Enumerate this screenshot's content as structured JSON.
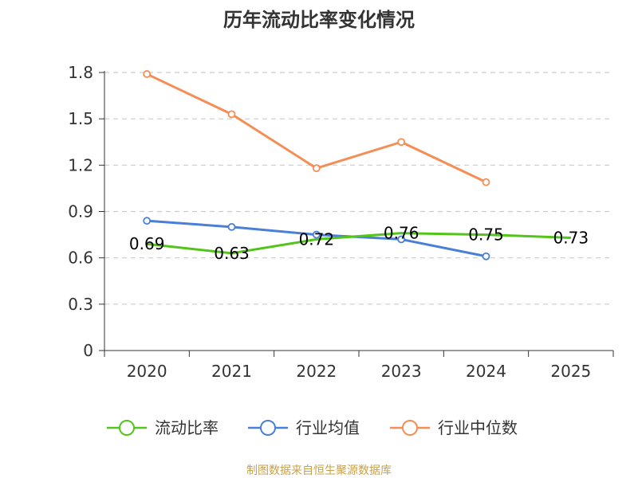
{
  "chart_data": {
    "type": "line",
    "title": "历年流动比率变化情况",
    "categories": [
      "2020",
      "2021",
      "2022",
      "2023",
      "2024",
      "2025"
    ],
    "y_ticks": [
      "0",
      "0.3",
      "0.6",
      "0.9",
      "1.2",
      "1.5",
      "1.8"
    ],
    "ylim": [
      0,
      1.8
    ],
    "grid": true,
    "legend_position": "bottom",
    "series": [
      {
        "name": "流动比率",
        "color": "#52c41a",
        "values": [
          0.69,
          0.63,
          0.72,
          0.76,
          0.75,
          0.73
        ],
        "labels": [
          "0.69",
          "0.63",
          "0.72",
          "0.76",
          "0.75",
          "0.73"
        ]
      },
      {
        "name": "行业均值",
        "color": "#4a7fd8",
        "values": [
          0.84,
          0.8,
          0.75,
          0.72,
          0.61,
          null
        ]
      },
      {
        "name": "行业中位数",
        "color": "#f58e55",
        "values": [
          1.79,
          1.53,
          1.18,
          1.35,
          1.09,
          null
        ]
      }
    ],
    "source": "制图数据来自恒生聚源数据库"
  }
}
